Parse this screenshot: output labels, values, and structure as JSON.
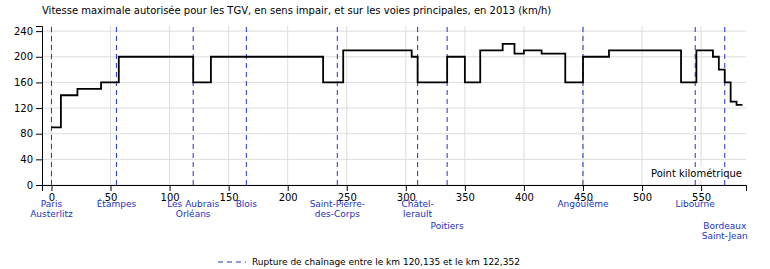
{
  "chart_data": {
    "type": "step",
    "title": "Vitesse maximale autorisée pour les TGV, en sens impair, et sur les voies principales, en 2013 (km/h)",
    "xlabel": "Point kilométrique",
    "x": [
      0,
      1,
      8,
      15,
      22,
      30,
      42,
      55,
      57,
      70,
      80,
      90,
      100,
      115,
      120,
      123,
      135,
      145,
      160,
      175,
      190,
      200,
      220,
      230,
      242,
      247,
      260,
      275,
      290,
      305,
      310,
      325,
      335,
      345,
      350,
      356,
      363,
      373,
      382,
      392,
      400,
      408,
      415,
      425,
      435,
      442,
      450,
      462,
      472,
      482,
      492,
      502,
      512,
      522,
      533,
      540,
      546,
      555,
      560,
      565,
      570,
      575,
      580,
      585
    ],
    "series": [
      {
        "color": "#000000",
        "values": [
          90,
          90,
          140,
          140,
          150,
          150,
          160,
          160,
          200,
          200,
          200,
          200,
          200,
          200,
          160,
          160,
          200,
          200,
          200,
          200,
          200,
          200,
          200,
          160,
          160,
          210,
          210,
          210,
          210,
          200,
          160,
          160,
          200,
          200,
          160,
          160,
          210,
          210,
          220,
          205,
          210,
          210,
          205,
          205,
          160,
          160,
          200,
          200,
          210,
          210,
          210,
          210,
          210,
          210,
          160,
          160,
          210,
          210,
          200,
          180,
          160,
          130,
          125,
          125
        ]
      }
    ],
    "xlim": [
      -8,
      588
    ],
    "ylim": [
      0,
      248
    ],
    "xticks": [
      0,
      50,
      100,
      150,
      200,
      250,
      300,
      350,
      400,
      450,
      500,
      550
    ],
    "yticks": [
      0,
      40,
      80,
      120,
      160,
      200,
      240
    ],
    "grid": true,
    "legend": "bottom",
    "vlines": {
      "name": "Rupture de chaînage entre le km 120,135 et le km 122,352",
      "color": "#2233bb",
      "line_style": "dashed",
      "x": [
        0,
        55,
        120,
        165,
        242,
        310,
        335,
        450,
        545,
        570
      ],
      "labels": [
        "Paris\nAusterlitz",
        "Étampes",
        "Les Aubrais\nOrléans",
        "Blois",
        "Saint-Pierre-\ndes-Corps",
        "Châtel-\nlerault",
        "Poitiers",
        "Angoulême",
        "Libourne",
        "Bordeaux\nSaint-Jean"
      ]
    }
  }
}
